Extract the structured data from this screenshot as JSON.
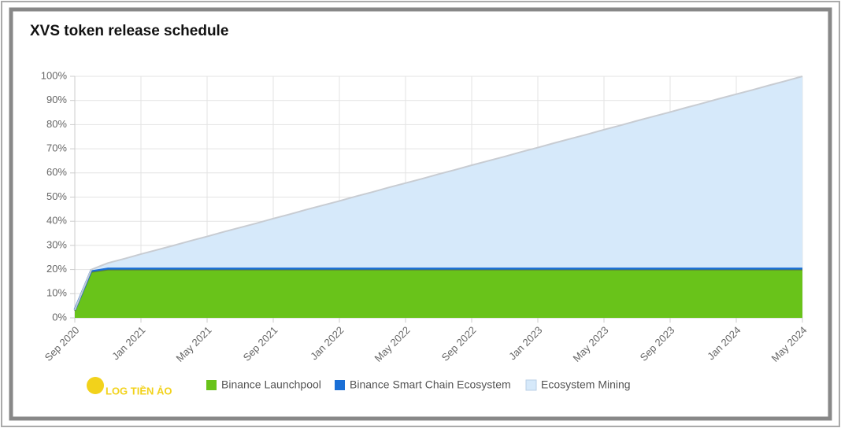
{
  "chart_data": {
    "type": "stacked-area",
    "title": "XVS token release schedule",
    "watermark": "LOG TIỀN ẢO",
    "categories": [
      "Sep 2020",
      null,
      null,
      null,
      "Jan 2021",
      null,
      null,
      null,
      "May 2021",
      null,
      null,
      null,
      "Sep 2021",
      null,
      null,
      null,
      "Jan 2022",
      null,
      null,
      null,
      "May 2022",
      null,
      null,
      null,
      "Sep 2022",
      null,
      null,
      null,
      "Jan 2023",
      null,
      null,
      null,
      "May 2023",
      null,
      null,
      null,
      "Sep 2023",
      null,
      null,
      null,
      "Jan 2024",
      null,
      null,
      null,
      "May 2024"
    ],
    "series": [
      {
        "name": "Binance Launchpool",
        "color": "#69c31a",
        "values": [
          3,
          19,
          20,
          20,
          20,
          20,
          20,
          20,
          20,
          20,
          20,
          20,
          20,
          20,
          20,
          20,
          20,
          20,
          20,
          20,
          20,
          20,
          20,
          20,
          20,
          20,
          20,
          20,
          20,
          20,
          20,
          20,
          20,
          20,
          20,
          20,
          20,
          20,
          20,
          20,
          20,
          20,
          20,
          20,
          20
        ]
      },
      {
        "name": "Binance Smart Chain Ecosystem",
        "color": "#1a6fd6",
        "values": [
          0.3,
          0.7,
          0.8,
          0.8,
          0.8,
          0.8,
          0.8,
          0.8,
          0.8,
          0.8,
          0.8,
          0.8,
          0.8,
          0.8,
          0.8,
          0.8,
          0.8,
          0.8,
          0.8,
          0.8,
          0.8,
          0.8,
          0.8,
          0.8,
          0.8,
          0.8,
          0.8,
          0.8,
          0.8,
          0.8,
          0.8,
          0.8,
          0.8,
          0.8,
          0.8,
          0.8,
          0.8,
          0.8,
          0.8,
          0.8,
          0.8,
          0.8,
          0.8,
          0.8,
          0.8
        ]
      },
      {
        "name": "Ecosystem Mining",
        "color": "#d6e9fa",
        "values": [
          0,
          0.3,
          1.9,
          3.7,
          5.6,
          7.4,
          9.2,
          11.1,
          12.9,
          14.8,
          16.6,
          18.4,
          20.3,
          22.1,
          24.0,
          25.8,
          27.6,
          29.5,
          31.3,
          33.2,
          35.0,
          36.8,
          38.7,
          40.5,
          42.4,
          44.2,
          46.0,
          47.9,
          49.7,
          51.6,
          53.4,
          55.2,
          57.1,
          58.9,
          60.8,
          62.6,
          64.4,
          66.3,
          68.1,
          70.0,
          71.8,
          73.6,
          75.5,
          77.3,
          79.2
        ]
      }
    ],
    "ylim": [
      0,
      100
    ],
    "yticks": [
      {
        "value": 0,
        "label": "0%"
      },
      {
        "value": 10,
        "label": "10%"
      },
      {
        "value": 20,
        "label": "20%"
      },
      {
        "value": 30,
        "label": "30%"
      },
      {
        "value": 40,
        "label": "40%"
      },
      {
        "value": 50,
        "label": "50%"
      },
      {
        "value": 60,
        "label": "60%"
      },
      {
        "value": 70,
        "label": "70%"
      },
      {
        "value": 80,
        "label": "80%"
      },
      {
        "value": 90,
        "label": "90%"
      },
      {
        "value": 100,
        "label": "100%"
      }
    ],
    "grid": true
  }
}
